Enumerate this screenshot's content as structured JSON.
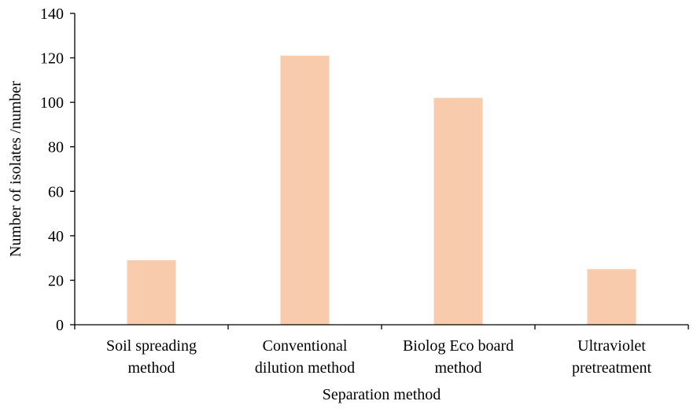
{
  "chart_data": {
    "type": "bar",
    "categories": [
      [
        "Soil spreading",
        "method"
      ],
      [
        "Conventional",
        "dilution method"
      ],
      [
        "Biolog Eco board",
        "method"
      ],
      [
        "Ultraviolet",
        "pretreatment"
      ]
    ],
    "values": [
      29,
      121,
      102,
      25
    ],
    "xlabel": "Separation method",
    "ylabel": "Number of isolates /number",
    "ylim": [
      0,
      140
    ],
    "yticks": [
      0,
      20,
      40,
      60,
      80,
      100,
      120,
      140
    ],
    "grid": false,
    "bar_color": "#f8cbad"
  }
}
